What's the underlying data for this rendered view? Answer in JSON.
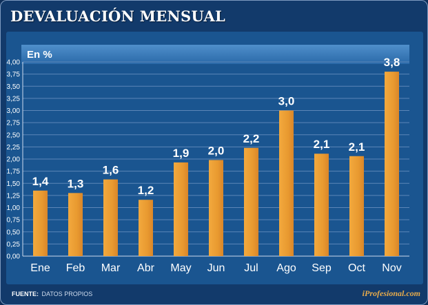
{
  "chart_data": {
    "type": "bar",
    "title": "DEVALUACIÓN MENSUAL",
    "unit_label": "En %",
    "categories": [
      "Ene",
      "Feb",
      "Mar",
      "Abr",
      "May",
      "Jun",
      "Jul",
      "Ago",
      "Sep",
      "Oct",
      "Nov"
    ],
    "values": [
      1.35,
      1.3,
      1.58,
      1.16,
      1.93,
      1.98,
      2.23,
      3.0,
      2.11,
      2.06,
      3.8
    ],
    "value_labels": [
      "1,4",
      "1,3",
      "1,6",
      "1,2",
      "1,9",
      "2,0",
      "2,2",
      "3,0",
      "2,1",
      "2,1",
      "3,8"
    ],
    "yticks": [
      "0,00",
      "0,25",
      "0,50",
      "0,75",
      "1,00",
      "1,25",
      "1,50",
      "1,75",
      "2,00",
      "2,25",
      "2,50",
      "2,75",
      "3,00",
      "3,25",
      "3,50",
      "3,75",
      "4,00"
    ],
    "ylim": [
      0,
      4
    ],
    "ystep": 0.25,
    "xlabel": "",
    "ylabel": "",
    "grid": true,
    "bar_color": "#ec9a31"
  },
  "footer": {
    "source_label": "FUENTE:",
    "source_text": "DATOS PROPIOS",
    "brand": "iProfesional.com"
  }
}
